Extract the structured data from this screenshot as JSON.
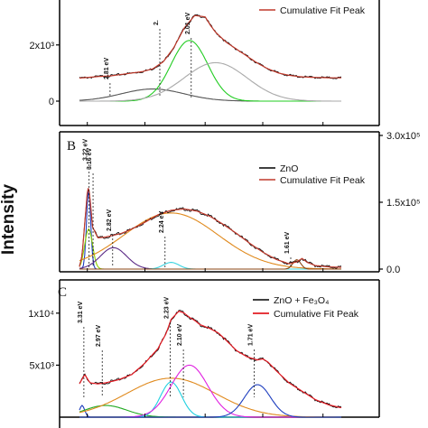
{
  "chart_data": {
    "type": "line",
    "ylabel": "Intensity",
    "panels": [
      {
        "label": "",
        "yticks": [
          "0",
          "2x10³"
        ],
        "ytick_values": [
          0,
          2000
        ],
        "ylim": [
          0,
          3600
        ],
        "legend": [
          "Cumulative Fit Peak"
        ],
        "peaks_ev": [
          2.81,
          2.1,
          2.01
        ],
        "annotations": [
          "2.81 eV",
          "2.",
          "2.01 eV"
        ],
        "series_x": [
          0,
          0.04,
          0.08,
          0.12,
          0.16,
          0.2,
          0.24,
          0.28,
          0.32,
          0.36,
          0.4,
          0.44,
          0.48,
          0.5,
          0.52,
          0.56,
          0.6,
          0.64,
          0.68,
          0.72,
          0.76,
          0.8,
          0.84,
          0.88,
          0.92,
          0.96,
          1.0
        ],
        "series_y": [
          820,
          850,
          880,
          900,
          950,
          1000,
          1050,
          1150,
          1400,
          1900,
          2600,
          3050,
          3000,
          2700,
          2450,
          2100,
          1850,
          1600,
          1350,
          1150,
          1000,
          920,
          870,
          850,
          840,
          830,
          830
        ]
      },
      {
        "label": "B",
        "right_yticks": [
          "0.0",
          "1.5x10⁵",
          "3.0x10⁵"
        ],
        "ytick_values": [
          0,
          150000,
          300000
        ],
        "ylim": [
          0,
          300000
        ],
        "legend": [
          "ZnO",
          "Cumulative Fit Peak"
        ],
        "peaks_ev": [
          3.22,
          3.16,
          2.82,
          2.24,
          1.61
        ],
        "annotations": [
          "3.22 eV",
          "3.16 eV",
          "2.82 eV",
          "2.24 eV",
          "1.61 eV"
        ],
        "series_x": [
          0,
          0.01,
          0.02,
          0.03,
          0.035,
          0.04,
          0.05,
          0.07,
          0.1,
          0.13,
          0.16,
          0.2,
          0.25,
          0.3,
          0.35,
          0.4,
          0.45,
          0.5,
          0.55,
          0.6,
          0.65,
          0.7,
          0.75,
          0.8,
          0.83,
          0.85,
          0.87,
          0.9,
          0.95,
          1.0
        ],
        "series_y": [
          5000,
          30000,
          100000,
          175000,
          185000,
          160000,
          95000,
          70000,
          72000,
          76000,
          80000,
          90000,
          105000,
          122000,
          132000,
          135000,
          130000,
          118000,
          100000,
          80000,
          58000,
          38000,
          22000,
          12000,
          16000,
          24000,
          15000,
          8000,
          5000,
          4000
        ]
      },
      {
        "label": "C",
        "yticks": [
          "5x10³",
          "1x10⁴"
        ],
        "ytick_values": [
          5000,
          10000
        ],
        "ylim": [
          0,
          12500
        ],
        "legend": [
          "ZnO + Fe₃O₄",
          "Cumulative Fit Peak"
        ],
        "peaks_ev": [
          3.31,
          2.97,
          2.23,
          2.1,
          1.71
        ],
        "annotations": [
          "3.31 eV",
          "2.97 eV",
          "2.23 eV",
          "2.10 eV",
          "1.71 eV"
        ],
        "series_x": [
          0,
          0.02,
          0.04,
          0.07,
          0.1,
          0.15,
          0.2,
          0.25,
          0.3,
          0.33,
          0.35,
          0.38,
          0.4,
          0.42,
          0.44,
          0.46,
          0.48,
          0.5,
          0.53,
          0.56,
          0.6,
          0.64,
          0.68,
          0.7,
          0.72,
          0.75,
          0.8,
          0.85,
          0.9,
          0.95,
          1.0
        ],
        "series_y": [
          3200,
          4100,
          3300,
          3200,
          3300,
          3600,
          4100,
          5200,
          6600,
          8000,
          9400,
          10200,
          10000,
          9600,
          9300,
          8900,
          8700,
          8500,
          8100,
          7400,
          6400,
          5800,
          5500,
          5600,
          5300,
          4500,
          3300,
          2500,
          1700,
          1200,
          900
        ]
      }
    ]
  }
}
